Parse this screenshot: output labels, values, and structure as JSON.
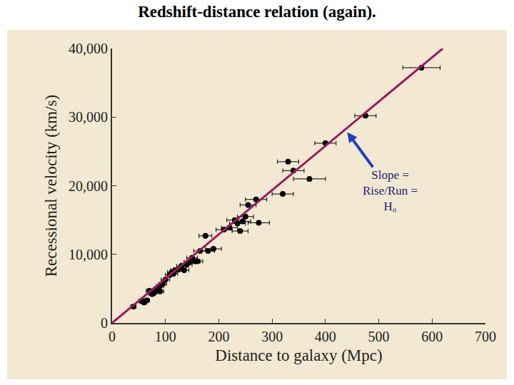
{
  "chart_data": {
    "type": "scatter",
    "title": "Redshift-distance relation (again).",
    "x_label": "Distance to galaxy (Mpc)",
    "y_label": "Recessional velocity (km/s)",
    "xlim": [
      0,
      700
    ],
    "xticks": [
      0,
      100,
      200,
      300,
      400,
      500,
      600,
      700
    ],
    "ylim": [
      0,
      40000
    ],
    "yticks": [
      0,
      {
        "value": 10000,
        "label": "10,000"
      },
      {
        "value": 20000,
        "label": "20,000"
      },
      {
        "value": 30000,
        "label": "30,000"
      },
      {
        "value": 40000,
        "label": "40,000"
      }
    ],
    "grid": false,
    "series": [
      {
        "type": "scatter",
        "color": "#000000",
        "marker": "circle",
        "x": [
          40,
          55,
          60,
          65,
          70,
          75,
          80,
          85,
          90,
          90,
          95,
          100,
          108,
          112,
          115,
          118,
          125,
          130,
          135,
          140,
          145,
          150,
          155,
          160,
          165,
          175,
          180,
          190,
          210,
          220,
          230,
          235,
          240,
          245,
          250,
          255,
          270,
          275,
          320,
          330,
          340,
          370,
          400,
          475,
          580
        ],
        "values": [
          2400,
          3200,
          3000,
          3300,
          4700,
          4200,
          4500,
          5000,
          4600,
          5400,
          5700,
          6300,
          7000,
          7400,
          7200,
          7700,
          7800,
          8300,
          7700,
          8500,
          8900,
          9500,
          9000,
          9000,
          10500,
          12700,
          10500,
          10800,
          13600,
          13900,
          15000,
          14500,
          13400,
          14800,
          15500,
          17200,
          18000,
          14600,
          18800,
          23500,
          22200,
          21000,
          26200,
          30200,
          37200
        ],
        "x_error": [
          5,
          5,
          5,
          5,
          6,
          6,
          6,
          7,
          7,
          7,
          7,
          8,
          8,
          8,
          8,
          8,
          9,
          9,
          9,
          10,
          10,
          10,
          10,
          10,
          12,
          12,
          12,
          15,
          15,
          15,
          15,
          15,
          15,
          15,
          15,
          15,
          20,
          20,
          20,
          20,
          20,
          30,
          20,
          20,
          35
        ]
      },
      {
        "type": "line",
        "color": "#9b1b5e",
        "line_style": "solid",
        "x": [
          0,
          620
        ],
        "values": [
          0,
          40000
        ]
      }
    ],
    "annotations": [
      {
        "text": [
          "Slope =",
          "Rise/Run =",
          "H₀"
        ],
        "x": 441,
        "y": 27800
      }
    ]
  }
}
